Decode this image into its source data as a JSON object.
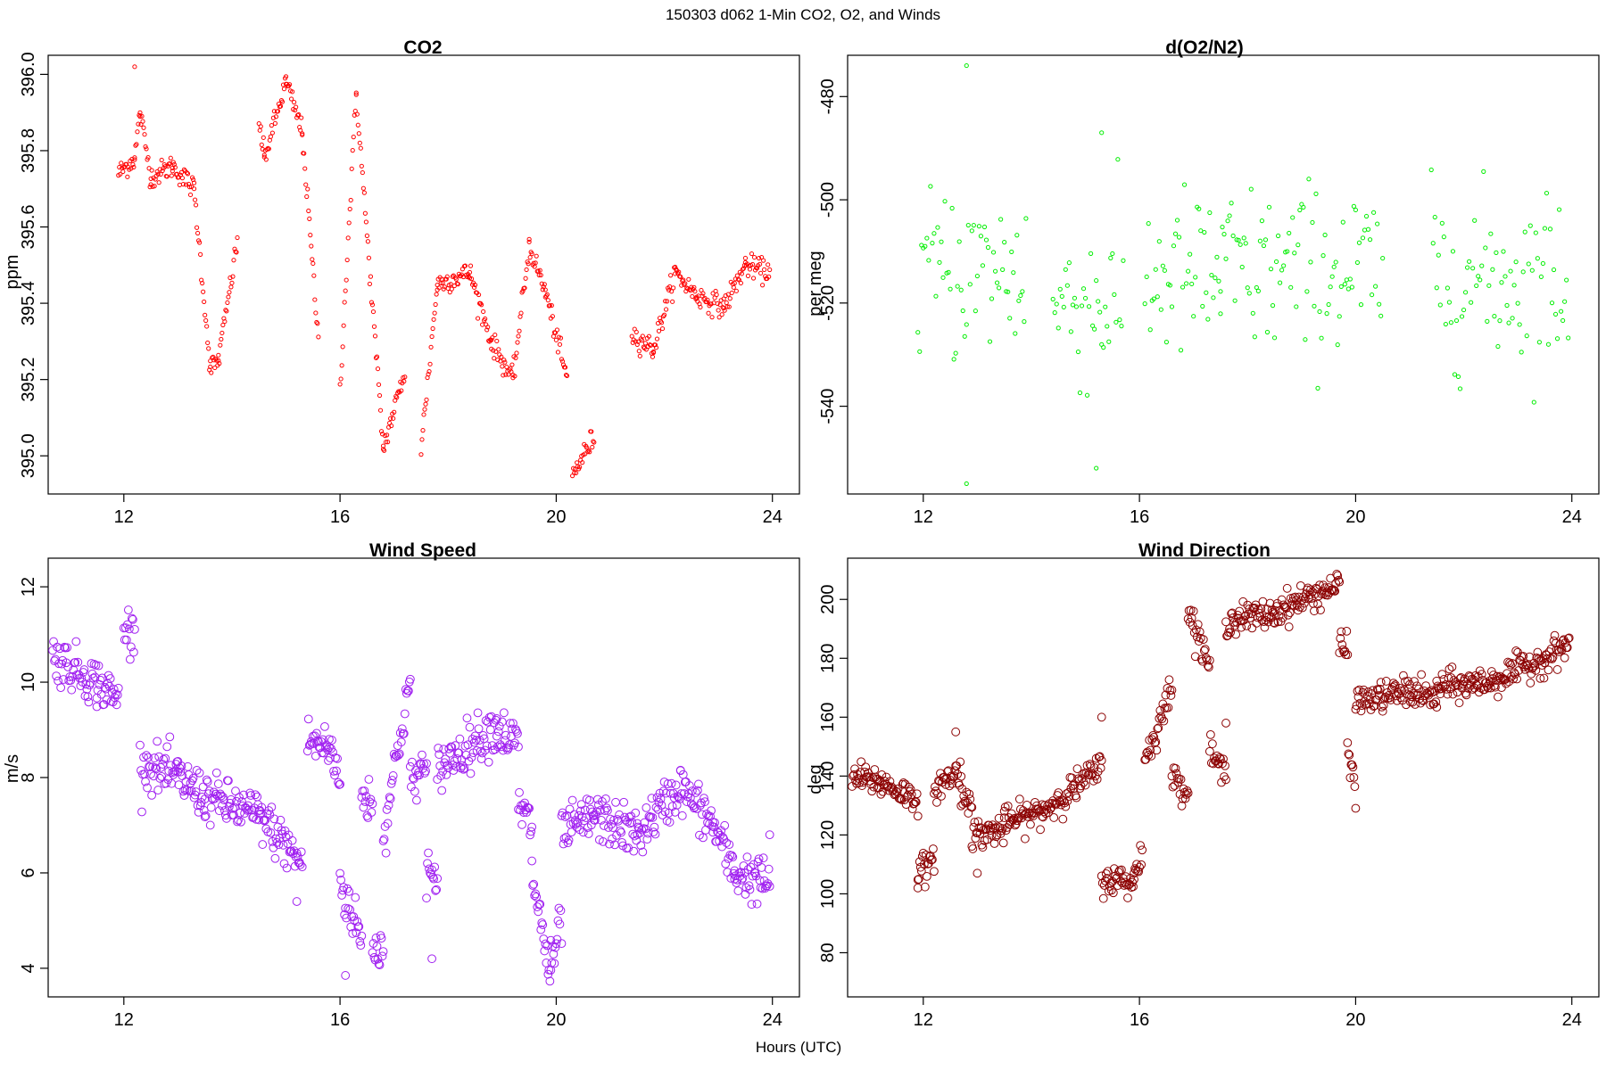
{
  "figure": {
    "title": "150303   d062   1-Min CO2, O2, and Winds",
    "xlabel": "Hours (UTC)"
  },
  "chart_data": [
    {
      "type": "scatter",
      "title": "CO2",
      "ylabel": "ppm",
      "color": "#ff0000",
      "marker_size": "small",
      "xlim": [
        10.6,
        24.5
      ],
      "ylim": [
        394.9,
        396.05
      ],
      "xticks": [
        12,
        16,
        20,
        24
      ],
      "yticks": [
        "395.0",
        "395.2",
        "395.4",
        "395.6",
        "395.8",
        "396.0"
      ],
      "segments": [
        {
          "x": [
            11.9,
            12.2
          ],
          "y": [
            395.74,
            395.78
          ]
        },
        {
          "x": [
            12.2,
            12.3
          ],
          "y": [
            395.78,
            395.9
          ]
        },
        {
          "x": [
            12.3,
            12.5
          ],
          "y": [
            395.9,
            395.73
          ]
        },
        {
          "x": [
            12.5,
            12.9
          ],
          "y": [
            395.73,
            395.76
          ]
        },
        {
          "x": [
            12.9,
            13.3
          ],
          "y": [
            395.76,
            395.7
          ]
        },
        {
          "x": [
            13.3,
            13.6
          ],
          "y": [
            395.7,
            395.23
          ]
        },
        {
          "x": [
            13.6,
            13.75
          ],
          "y": [
            395.23,
            395.25
          ]
        },
        {
          "x": [
            13.75,
            14.1
          ],
          "y": [
            395.25,
            395.56
          ]
        },
        {
          "x": [
            14.5,
            14.6
          ],
          "y": [
            395.88,
            395.78
          ]
        },
        {
          "x": [
            14.6,
            15.0
          ],
          "y": [
            395.78,
            395.98
          ]
        },
        {
          "x": [
            15.0,
            15.3
          ],
          "y": [
            395.98,
            395.85
          ]
        },
        {
          "x": [
            15.3,
            15.6
          ],
          "y": [
            395.85,
            395.3
          ]
        },
        {
          "x": [
            16.0,
            16.3
          ],
          "y": [
            395.18,
            395.95
          ]
        },
        {
          "x": [
            16.3,
            16.8
          ],
          "y": [
            395.95,
            395.02
          ]
        },
        {
          "x": [
            16.8,
            17.2
          ],
          "y": [
            395.02,
            395.22
          ]
        },
        {
          "x": [
            17.5,
            17.8
          ],
          "y": [
            395.02,
            395.45
          ]
        },
        {
          "x": [
            17.8,
            18.4
          ],
          "y": [
            395.45,
            395.48
          ]
        },
        {
          "x": [
            18.4,
            18.8
          ],
          "y": [
            395.48,
            395.3
          ]
        },
        {
          "x": [
            18.8,
            19.2
          ],
          "y": [
            395.3,
            395.2
          ]
        },
        {
          "x": [
            19.2,
            19.5
          ],
          "y": [
            395.2,
            395.55
          ]
        },
        {
          "x": [
            19.5,
            19.8
          ],
          "y": [
            395.55,
            395.43
          ]
        },
        {
          "x": [
            19.8,
            20.2
          ],
          "y": [
            395.43,
            395.2
          ]
        },
        {
          "x": [
            20.3,
            20.7
          ],
          "y": [
            394.95,
            395.05
          ]
        },
        {
          "x": [
            21.4,
            21.8
          ],
          "y": [
            395.32,
            395.28
          ]
        },
        {
          "x": [
            21.8,
            22.2
          ],
          "y": [
            395.28,
            395.48
          ]
        },
        {
          "x": [
            22.2,
            22.6
          ],
          "y": [
            395.48,
            395.42
          ]
        },
        {
          "x": [
            22.6,
            23.1
          ],
          "y": [
            395.42,
            395.39
          ]
        },
        {
          "x": [
            23.1,
            23.5
          ],
          "y": [
            395.39,
            395.5
          ]
        },
        {
          "x": [
            23.5,
            23.95
          ],
          "y": [
            395.5,
            395.48
          ]
        }
      ],
      "outliers": [
        {
          "x": 12.2,
          "y": 396.02
        }
      ],
      "noise": 0.015,
      "point_step_minutes": 1
    },
    {
      "type": "scatter",
      "title": "d(O2/N2)",
      "ylabel": "per meg",
      "color": "#00ee00",
      "marker_size": "small",
      "xlim": [
        10.6,
        24.5
      ],
      "ylim": [
        -557,
        -472
      ],
      "xticks": [
        12,
        16,
        20,
        24
      ],
      "yticks": [
        "-540",
        "-520",
        "-500",
        "-480"
      ],
      "segments": [
        {
          "x": [
            11.9,
            13.9
          ],
          "y": [
            -514,
            -514
          ]
        },
        {
          "x": [
            14.4,
            15.7
          ],
          "y": [
            -520,
            -520
          ]
        },
        {
          "x": [
            16.1,
            17.5
          ],
          "y": [
            -515,
            -515
          ]
        },
        {
          "x": [
            17.5,
            20.5
          ],
          "y": [
            -514,
            -514
          ]
        },
        {
          "x": [
            21.4,
            23.95
          ],
          "y": [
            -515,
            -515
          ]
        }
      ],
      "outliers": [
        {
          "x": 12.8,
          "y": -474
        },
        {
          "x": 12.8,
          "y": -555
        },
        {
          "x": 15.2,
          "y": -552
        },
        {
          "x": 15.3,
          "y": -487
        }
      ],
      "noise": 8.5,
      "point_step_minutes": 2
    },
    {
      "type": "scatter",
      "title": "Wind Speed",
      "ylabel": "m/s",
      "color": "#a020f0",
      "marker_size": "large",
      "xlim": [
        10.6,
        24.5
      ],
      "ylim": [
        3.4,
        12.6
      ],
      "xticks": [
        12,
        16,
        20,
        24
      ],
      "yticks": [
        "4",
        "6",
        "8",
        "10",
        "12"
      ],
      "segments": [
        {
          "x": [
            10.6,
            11.5
          ],
          "y": [
            10.6,
            10.0
          ]
        },
        {
          "x": [
            11.5,
            11.9
          ],
          "y": [
            10.0,
            9.6
          ]
        },
        {
          "x": [
            12.0,
            12.2
          ],
          "y": [
            11.2,
            11.0
          ]
        },
        {
          "x": [
            12.3,
            13.0
          ],
          "y": [
            8.3,
            8.0
          ]
        },
        {
          "x": [
            13.0,
            13.5
          ],
          "y": [
            8.0,
            7.6
          ]
        },
        {
          "x": [
            13.5,
            14.5
          ],
          "y": [
            7.6,
            7.2
          ]
        },
        {
          "x": [
            14.5,
            15.3
          ],
          "y": [
            7.2,
            6.2
          ]
        },
        {
          "x": [
            15.4,
            15.8
          ],
          "y": [
            8.8,
            8.6
          ]
        },
        {
          "x": [
            15.8,
            16.0
          ],
          "y": [
            8.6,
            8.0
          ]
        },
        {
          "x": [
            16.0,
            16.4
          ],
          "y": [
            5.8,
            4.6
          ]
        },
        {
          "x": [
            16.4,
            16.6
          ],
          "y": [
            7.5,
            7.6
          ]
        },
        {
          "x": [
            16.6,
            16.8
          ],
          "y": [
            4.4,
            4.4
          ]
        },
        {
          "x": [
            16.8,
            17.3
          ],
          "y": [
            6.8,
            10.1
          ]
        },
        {
          "x": [
            17.3,
            17.6
          ],
          "y": [
            7.8,
            8.3
          ]
        },
        {
          "x": [
            17.6,
            17.8
          ],
          "y": [
            6.2,
            5.5
          ]
        },
        {
          "x": [
            17.8,
            18.9
          ],
          "y": [
            8.2,
            9.1
          ]
        },
        {
          "x": [
            18.9,
            19.3
          ],
          "y": [
            9.0,
            8.7
          ]
        },
        {
          "x": [
            19.3,
            19.55
          ],
          "y": [
            7.4,
            7.0
          ]
        },
        {
          "x": [
            19.55,
            19.9
          ],
          "y": [
            6.0,
            3.8
          ]
        },
        {
          "x": [
            19.9,
            20.1
          ],
          "y": [
            4.0,
            5.0
          ]
        },
        {
          "x": [
            20.1,
            20.7
          ],
          "y": [
            6.8,
            7.2
          ]
        },
        {
          "x": [
            20.7,
            21.5
          ],
          "y": [
            7.2,
            6.8
          ]
        },
        {
          "x": [
            21.5,
            22.3
          ],
          "y": [
            6.8,
            7.8
          ]
        },
        {
          "x": [
            22.3,
            22.9
          ],
          "y": [
            7.8,
            7.0
          ]
        },
        {
          "x": [
            22.9,
            23.3
          ],
          "y": [
            7.0,
            6.0
          ]
        },
        {
          "x": [
            23.3,
            23.95
          ],
          "y": [
            6.0,
            5.8
          ]
        }
      ],
      "outliers": [
        {
          "x": 16.1,
          "y": 3.85
        },
        {
          "x": 17.7,
          "y": 4.2
        },
        {
          "x": 15.2,
          "y": 5.4
        },
        {
          "x": 23.95,
          "y": 6.8
        }
      ],
      "noise": 0.25,
      "point_step_minutes": 1
    },
    {
      "type": "scatter",
      "title": "Wind Direction",
      "ylabel": "deg",
      "color": "#8b0000",
      "marker_size": "large",
      "xlim": [
        10.6,
        24.5
      ],
      "ylim": [
        65,
        214
      ],
      "xticks": [
        12,
        16,
        20,
        24
      ],
      "yticks": [
        "80",
        "100",
        "120",
        "140",
        "160",
        "180",
        "200"
      ],
      "segments": [
        {
          "x": [
            10.6,
            11.2
          ],
          "y": [
            140,
            138
          ]
        },
        {
          "x": [
            11.2,
            11.9
          ],
          "y": [
            138,
            132
          ]
        },
        {
          "x": [
            11.9,
            12.2
          ],
          "y": [
            108,
            110
          ]
        },
        {
          "x": [
            12.2,
            12.7
          ],
          "y": [
            136,
            142
          ]
        },
        {
          "x": [
            12.7,
            12.9
          ],
          "y": [
            132,
            133
          ]
        },
        {
          "x": [
            12.9,
            13.5
          ],
          "y": [
            120,
            122
          ]
        },
        {
          "x": [
            13.5,
            14.2
          ],
          "y": [
            124,
            128
          ]
        },
        {
          "x": [
            14.2,
            15.3
          ],
          "y": [
            128,
            143
          ]
        },
        {
          "x": [
            15.3,
            15.9
          ],
          "y": [
            105,
            104
          ]
        },
        {
          "x": [
            15.9,
            16.05
          ],
          "y": [
            106,
            115
          ]
        },
        {
          "x": [
            16.1,
            16.6
          ],
          "y": [
            145,
            170
          ]
        },
        {
          "x": [
            16.6,
            16.9
          ],
          "y": [
            140,
            135
          ]
        },
        {
          "x": [
            16.9,
            17.3
          ],
          "y": [
            196,
            178
          ]
        },
        {
          "x": [
            17.3,
            17.6
          ],
          "y": [
            148,
            140
          ]
        },
        {
          "x": [
            17.6,
            18.5
          ],
          "y": [
            193,
            195
          ]
        },
        {
          "x": [
            18.5,
            19.7
          ],
          "y": [
            196,
            205
          ]
        },
        {
          "x": [
            19.7,
            19.85
          ],
          "y": [
            185,
            182
          ]
        },
        {
          "x": [
            19.85,
            20.0
          ],
          "y": [
            150,
            135
          ]
        },
        {
          "x": [
            20.0,
            21.0
          ],
          "y": [
            165,
            169
          ]
        },
        {
          "x": [
            21.0,
            21.5
          ],
          "y": [
            169,
            166
          ]
        },
        {
          "x": [
            21.5,
            22.5
          ],
          "y": [
            170,
            172
          ]
        },
        {
          "x": [
            22.5,
            23.5
          ],
          "y": [
            172,
            180
          ]
        },
        {
          "x": [
            23.5,
            23.95
          ],
          "y": [
            180,
            185
          ]
        }
      ],
      "outliers": [
        {
          "x": 11.9,
          "y": 102
        },
        {
          "x": 12.6,
          "y": 155
        },
        {
          "x": 15.3,
          "y": 160
        },
        {
          "x": 13.0,
          "y": 107
        },
        {
          "x": 17.6,
          "y": 158
        }
      ],
      "noise": 2.5,
      "point_step_minutes": 1
    }
  ]
}
